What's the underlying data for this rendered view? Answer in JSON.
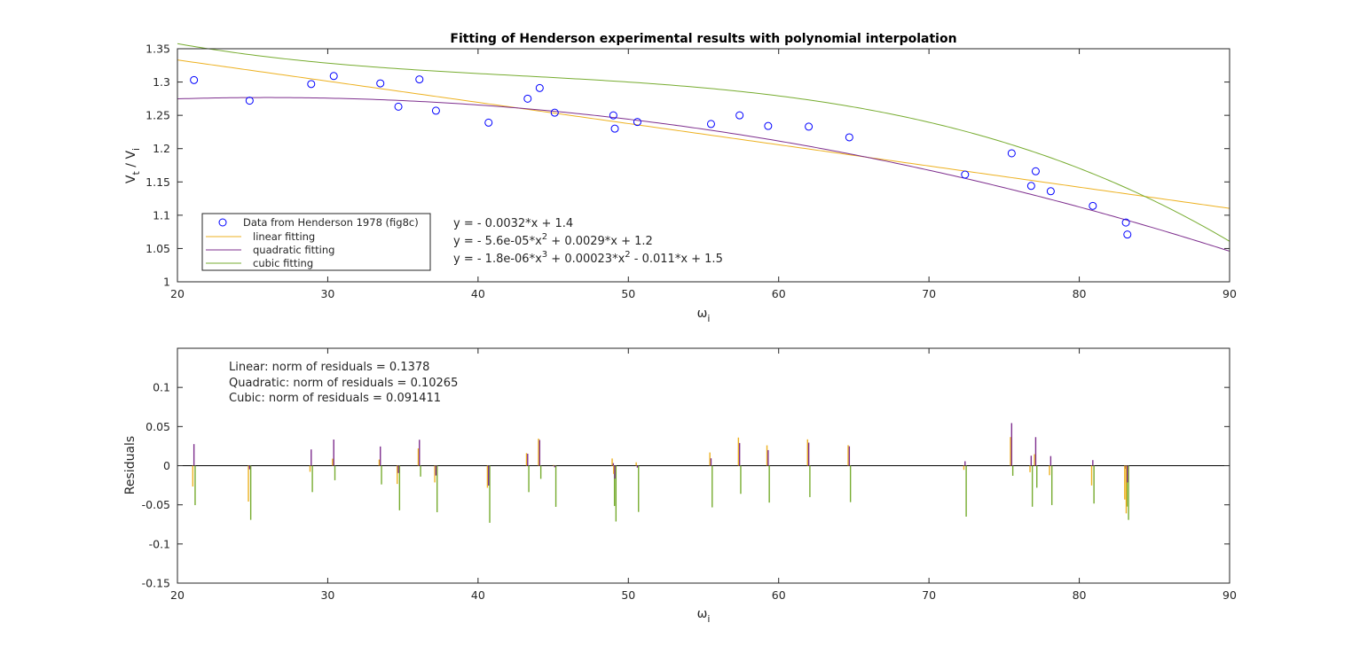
{
  "chart_data": [
    {
      "type": "scatter",
      "title": "Fitting of Henderson experimental results with polynomial interpolation",
      "xlabel": {
        "base": "ω",
        "sub": "i"
      },
      "ylabel": {
        "base1": "V",
        "sub1": "t",
        "mid": " / V",
        "sub2": "i"
      },
      "xlim": [
        20,
        90
      ],
      "ylim": [
        1,
        1.35
      ],
      "xticks": [
        20,
        30,
        40,
        50,
        60,
        70,
        80,
        90
      ],
      "xtick_labels": [
        "20",
        "30",
        "40",
        "50",
        "60",
        "70",
        "80",
        "90"
      ],
      "yticks": [
        1,
        1.05,
        1.1,
        1.15,
        1.2,
        1.25,
        1.3,
        1.35
      ],
      "ytick_labels": [
        "1",
        "1.05",
        "1.1",
        "1.15",
        "1.2",
        "1.25",
        "1.3",
        "1.35"
      ],
      "grid": false,
      "legend": {
        "placement": "lower-left",
        "entries": [
          "Data from Henderson 1978 (fig8c)",
          "linear fitting",
          "quadratic fitting",
          "cubic fitting"
        ]
      },
      "data_points": {
        "name": "Data from Henderson 1978 (fig8c)",
        "color": "#0000ff",
        "x": [
          21.1,
          24.8,
          28.9,
          30.4,
          33.5,
          34.7,
          36.1,
          37.2,
          40.7,
          43.3,
          44.1,
          45.1,
          49.0,
          49.1,
          50.6,
          55.5,
          57.4,
          59.3,
          62.0,
          64.7,
          72.4,
          75.5,
          76.8,
          77.1,
          78.1,
          80.9,
          83.1,
          83.2
        ],
        "y": [
          1.303,
          1.272,
          1.297,
          1.309,
          1.298,
          1.263,
          1.304,
          1.257,
          1.239,
          1.275,
          1.291,
          1.254,
          1.25,
          1.23,
          1.24,
          1.237,
          1.25,
          1.234,
          1.233,
          1.217,
          1.161,
          1.193,
          1.144,
          1.166,
          1.136,
          1.114,
          1.089,
          1.071
        ]
      },
      "fits": [
        {
          "name": "linear fitting",
          "color": "#edb120",
          "coeffs": [
            -0.0031835,
            1.3968
          ]
        },
        {
          "name": "quadratic fitting",
          "color": "#7e2f8e",
          "coeffs": [
            -5.618e-05,
            0.0029117,
            1.239
          ]
        },
        {
          "name": "cubic fitting",
          "color": "#77ac30",
          "coeffs": [
            -1.8e-06,
            0.00023,
            -0.011,
            1.5
          ]
        }
      ],
      "equations": [
        {
          "parts": [
            [
              "t",
              "y = - 0.0032*x + 1.4"
            ]
          ]
        },
        {
          "parts": [
            [
              "t",
              "y = - 5.6e-05*x"
            ],
            [
              "sup",
              "2"
            ],
            [
              "t",
              " + 0.0029*x + 1.2"
            ]
          ]
        },
        {
          "parts": [
            [
              "t",
              "y = - 1.8e-06*x"
            ],
            [
              "sup",
              "3"
            ],
            [
              "t",
              " + 0.00023*x"
            ],
            [
              "sup",
              "2"
            ],
            [
              "t",
              " - 0.011*x + 1.5"
            ]
          ]
        }
      ]
    },
    {
      "type": "bar",
      "title": "",
      "xlabel": {
        "base": "ω",
        "sub": "i"
      },
      "ylabel": "Residuals",
      "xlim": [
        20,
        90
      ],
      "ylim": [
        -0.15,
        0.15
      ],
      "xticks": [
        20,
        30,
        40,
        50,
        60,
        70,
        80,
        90
      ],
      "xtick_labels": [
        "20",
        "30",
        "40",
        "50",
        "60",
        "70",
        "80",
        "90"
      ],
      "yticks": [
        -0.15,
        -0.1,
        -0.05,
        0,
        0.05,
        0.1
      ],
      "ytick_labels": [
        "-0.15",
        "-0.1",
        "-0.05",
        "0",
        "0.05",
        "0.1"
      ],
      "grid": false,
      "zero_line": true,
      "norm_texts": [
        "Linear: norm of residuals = 0.1378",
        "Quadratic: norm of residuals = 0.10265",
        "Cubic: norm of residuals = 0.091411"
      ],
      "residual_series": [
        "linear fitting",
        "quadratic fitting",
        "cubic fitting"
      ]
    }
  ]
}
